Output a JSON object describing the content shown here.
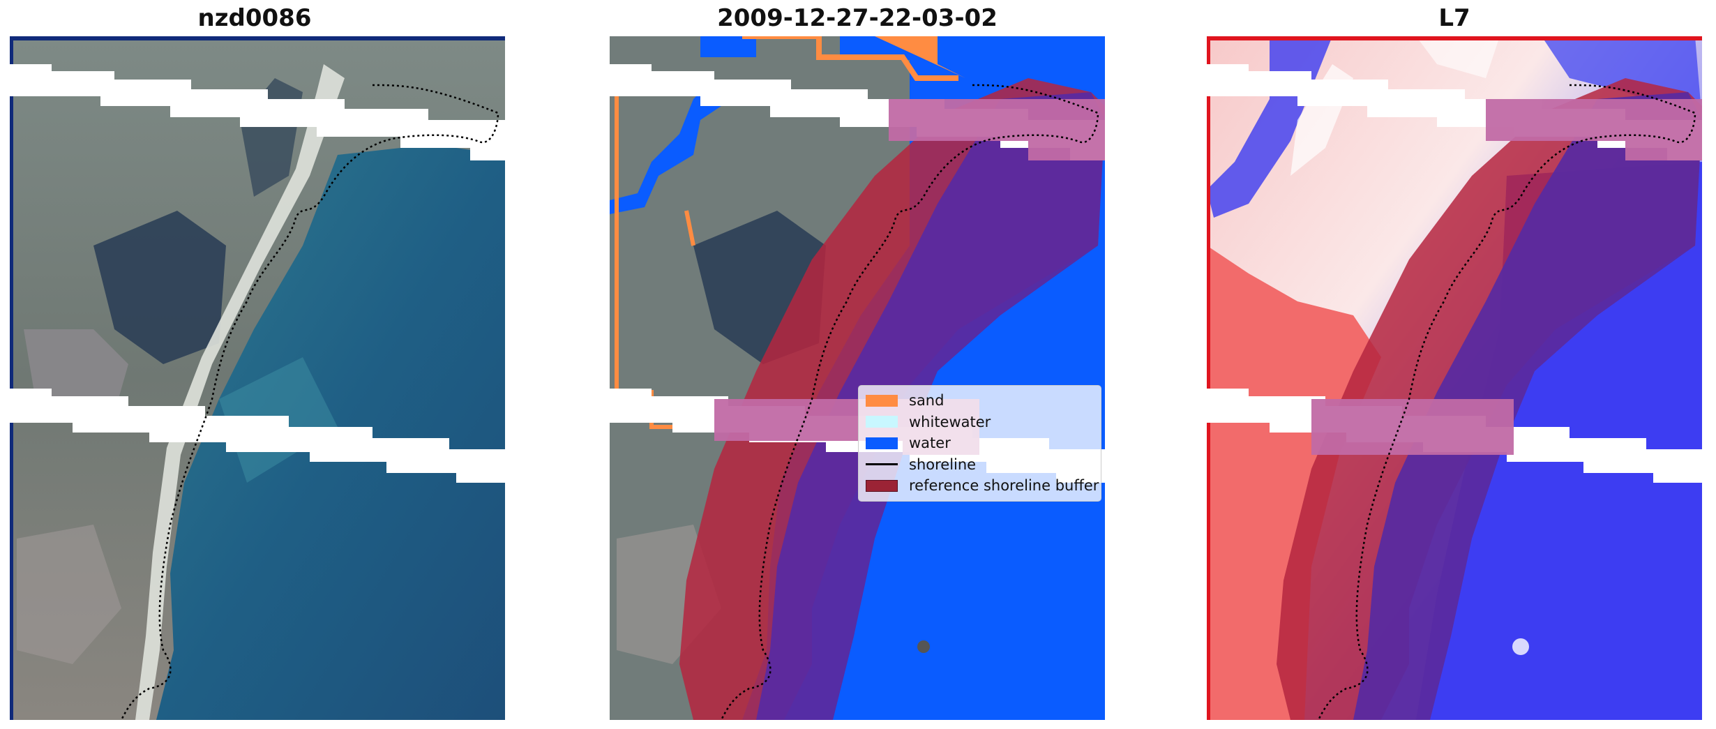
{
  "panels": [
    {
      "title": "nzd0086"
    },
    {
      "title": "2009-12-27-22-03-02"
    },
    {
      "title": "L7"
    }
  ],
  "legend": {
    "items": [
      {
        "label": "sand",
        "color": "#ff8c42",
        "kind": "patch"
      },
      {
        "label": "whitewater",
        "color": "#c8f7ff",
        "kind": "patch"
      },
      {
        "label": "water",
        "color": "#0a5cff",
        "kind": "patch"
      },
      {
        "label": "shoreline",
        "color": "#000000",
        "kind": "line"
      },
      {
        "label": "reference shoreline buffer",
        "color": "#9b2335",
        "kind": "patch"
      }
    ]
  }
}
